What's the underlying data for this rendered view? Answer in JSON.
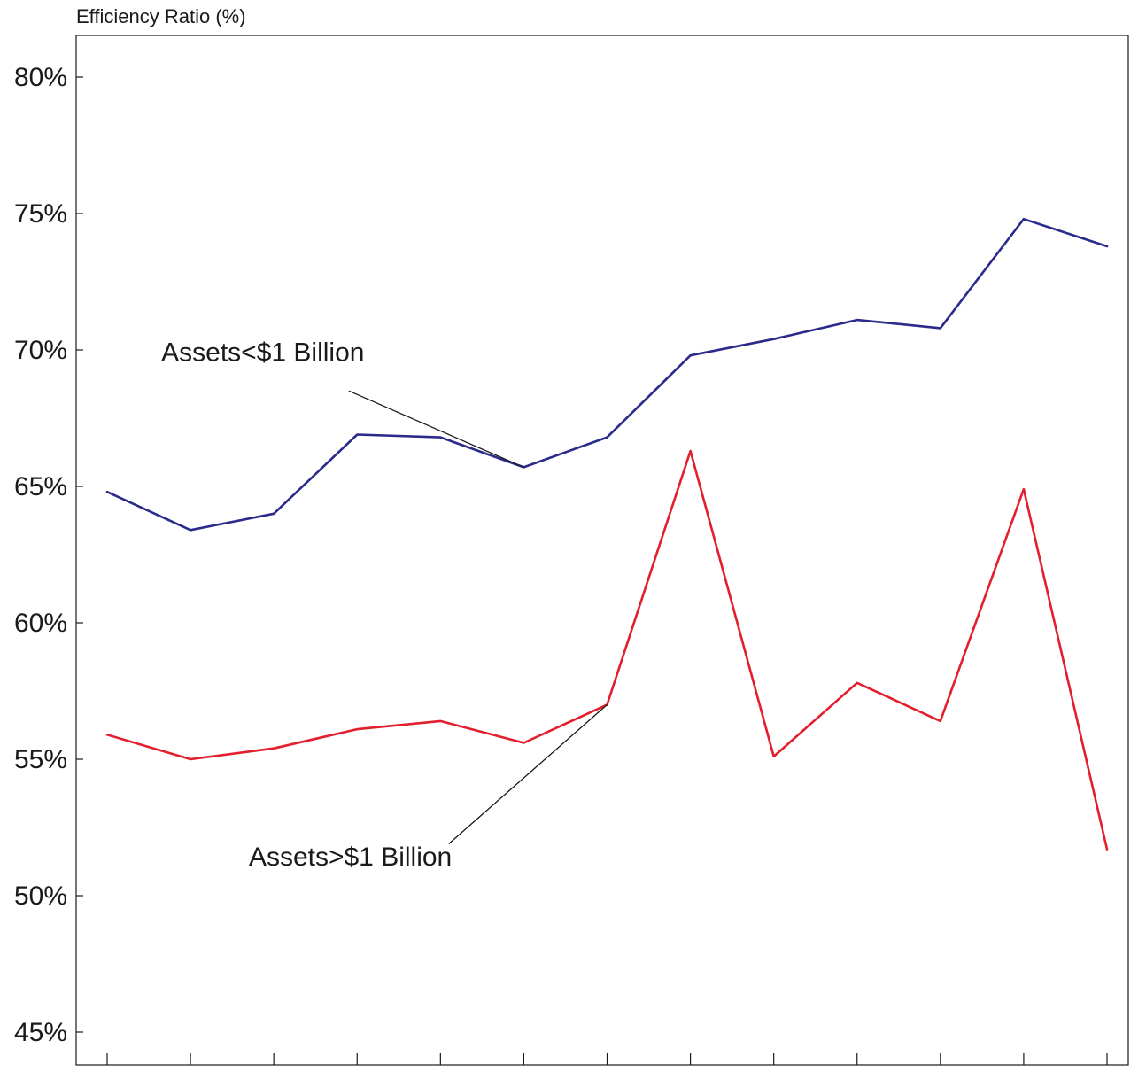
{
  "chart_data": {
    "type": "line",
    "ylabel": "Efficiency Ratio (%)",
    "ylim": [
      44,
      81.5
    ],
    "y_ticks": [
      45,
      50,
      55,
      60,
      65,
      70,
      75,
      80
    ],
    "y_tick_labels": [
      "45%",
      "50%",
      "55%",
      "60%",
      "65%",
      "70%",
      "75%",
      "80%"
    ],
    "x": [
      1,
      2,
      3,
      4,
      5,
      6,
      7,
      8,
      9,
      10,
      11,
      12,
      13
    ],
    "x_tick_labels": [],
    "grid": false,
    "series": [
      {
        "name": "Assets<$1 Billion",
        "color": "#2b2b8c",
        "values": [
          64.8,
          63.4,
          64.0,
          66.9,
          66.8,
          65.7,
          66.8,
          69.8,
          70.4,
          71.1,
          70.8,
          74.8,
          73.8
        ]
      },
      {
        "name": "Assets>$1 Billion",
        "color": "#e31e2d",
        "values": [
          55.9,
          55.0,
          55.4,
          56.1,
          56.4,
          55.6,
          57.0,
          66.3,
          55.1,
          57.8,
          56.4,
          64.9,
          51.7
        ]
      }
    ],
    "annotations": [
      {
        "text": "Assets<$1 Billion",
        "series_index": 0,
        "point_index": 5,
        "label_x": 1.65,
        "label_y": 69.6,
        "line_from_x": 3.9,
        "line_from_y": 68.5
      },
      {
        "text": "Assets>$1 Billion",
        "series_index": 1,
        "point_index": 6,
        "label_x": 2.7,
        "label_y": 51.1,
        "line_from_x": 5.1,
        "line_from_y": 51.9
      }
    ]
  }
}
